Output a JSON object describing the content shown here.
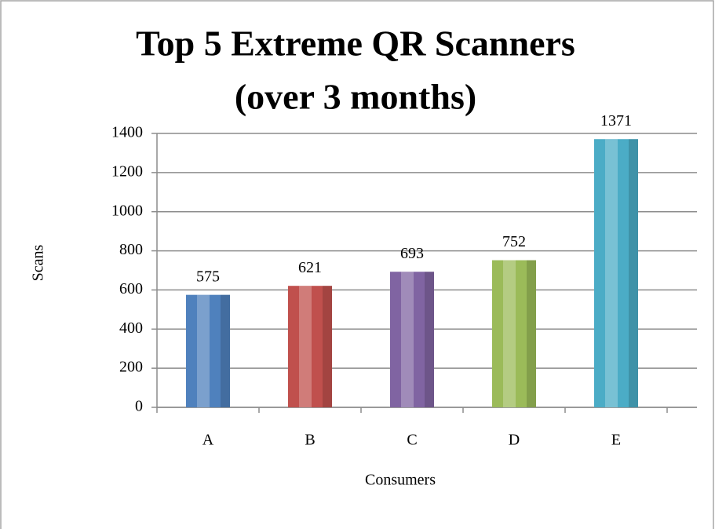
{
  "chart_data": {
    "type": "bar",
    "title": [
      "Top 5 Extreme QR Scanners",
      "(over 3 months)"
    ],
    "x_label": "Consumers",
    "y_label": "Scans",
    "categories": [
      "A",
      "B",
      "C",
      "D",
      "E"
    ],
    "values": [
      575,
      621,
      693,
      752,
      1371
    ],
    "colors": [
      "#4f81bd",
      "#c0504d",
      "#8064a2",
      "#9bbb59",
      "#4bacc6"
    ],
    "ylim": [
      0,
      1400
    ],
    "yticks": [
      0,
      200,
      400,
      600,
      800,
      1000,
      1200,
      1400
    ],
    "grid": true
  }
}
